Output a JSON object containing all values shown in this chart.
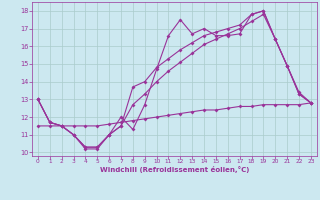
{
  "x": [
    0,
    1,
    2,
    3,
    4,
    5,
    6,
    7,
    8,
    9,
    10,
    11,
    12,
    13,
    14,
    15,
    16,
    17,
    18,
    19,
    20,
    21,
    22,
    23
  ],
  "y_spiky": [
    13.0,
    11.7,
    11.5,
    11.0,
    10.2,
    10.2,
    11.0,
    12.0,
    11.3,
    12.7,
    14.7,
    16.6,
    17.5,
    16.7,
    17.0,
    16.6,
    16.6,
    16.7,
    17.8,
    18.0,
    16.4,
    14.9,
    13.3,
    12.8
  ],
  "y_smooth1": [
    13.0,
    11.7,
    11.5,
    11.0,
    10.3,
    10.3,
    11.0,
    11.5,
    13.7,
    14.0,
    14.8,
    15.3,
    15.8,
    16.2,
    16.6,
    16.8,
    17.0,
    17.2,
    17.8,
    18.0,
    16.4,
    14.9,
    13.4,
    12.8
  ],
  "y_smooth2": [
    13.0,
    11.7,
    11.5,
    11.0,
    10.3,
    10.3,
    11.0,
    11.5,
    12.7,
    13.3,
    14.0,
    14.6,
    15.1,
    15.6,
    16.1,
    16.4,
    16.7,
    17.0,
    17.4,
    17.8,
    16.4,
    14.9,
    13.3,
    12.8
  ],
  "y_flat": [
    11.5,
    11.5,
    11.5,
    11.5,
    11.5,
    11.5,
    11.6,
    11.7,
    11.8,
    11.9,
    12.0,
    12.1,
    12.2,
    12.3,
    12.4,
    12.4,
    12.5,
    12.6,
    12.6,
    12.7,
    12.7,
    12.7,
    12.7,
    12.8
  ],
  "line_color": "#993399",
  "bg_color": "#cce8f0",
  "grid_color": "#aacccc",
  "ylim": [
    9.8,
    18.5
  ],
  "xlim": [
    -0.5,
    23.5
  ],
  "xlabel": "Windchill (Refroidissement éolien,°C)",
  "yticks": [
    10,
    11,
    12,
    13,
    14,
    15,
    16,
    17,
    18
  ],
  "xticks": [
    0,
    1,
    2,
    3,
    4,
    5,
    6,
    7,
    8,
    9,
    10,
    11,
    12,
    13,
    14,
    15,
    16,
    17,
    18,
    19,
    20,
    21,
    22,
    23
  ]
}
